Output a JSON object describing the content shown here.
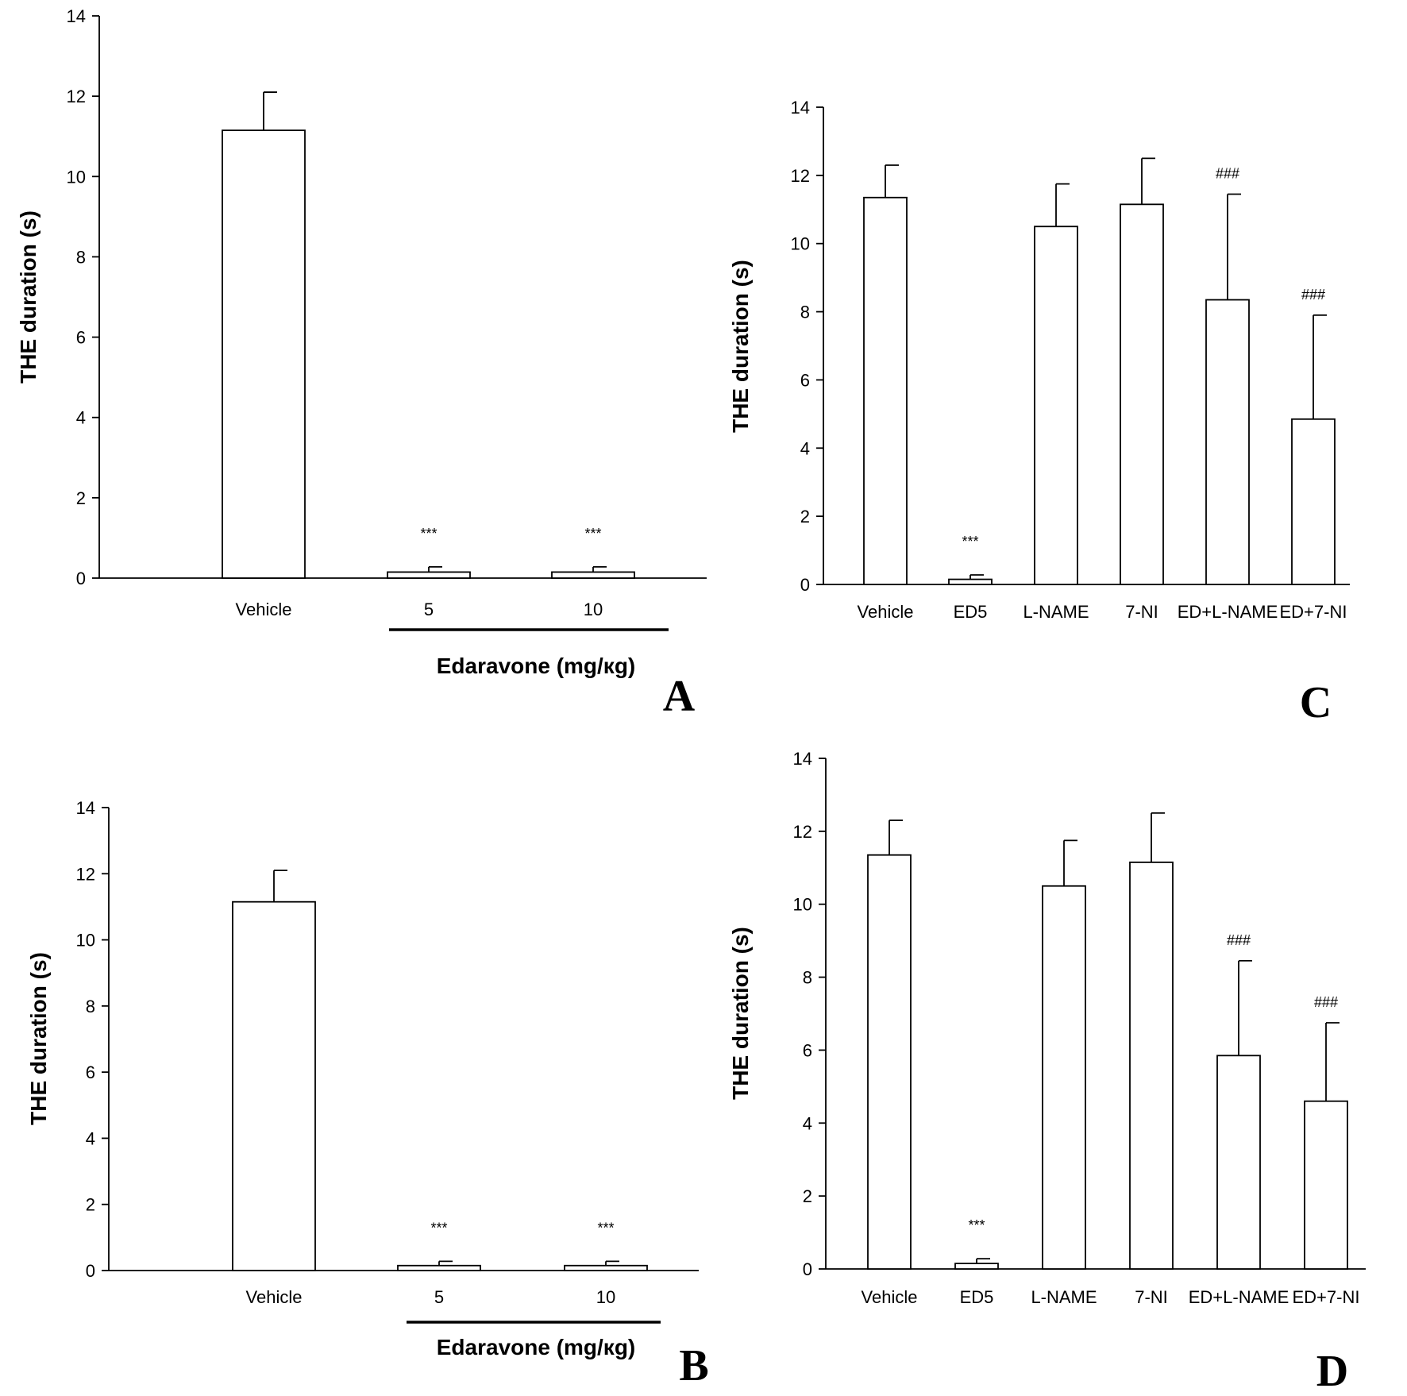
{
  "chart_data": [
    {
      "panel": "A",
      "type": "bar",
      "ylabel": "THE duration (s)",
      "group_label": "Edaravone (mg/кg)",
      "ylim": [
        0,
        14
      ],
      "yticks": [
        "0",
        "2",
        "4",
        "6",
        "8",
        "10",
        "12",
        "14"
      ],
      "categories": [
        "Vehicle",
        "5",
        "10"
      ],
      "values": [
        11.15,
        0.15,
        0.15
      ],
      "errors": [
        0.95,
        0.13,
        0.13
      ],
      "annotations": [
        "",
        "***",
        "***"
      ]
    },
    {
      "panel": "B",
      "type": "bar",
      "ylabel": "THE duration (s)",
      "group_label": "Edaravone (mg/кg)",
      "ylim": [
        0,
        14
      ],
      "yticks": [
        "0",
        "2",
        "4",
        "6",
        "8",
        "10",
        "12",
        "14"
      ],
      "categories": [
        "Vehicle",
        "5",
        "10"
      ],
      "values": [
        11.15,
        0.15,
        0.15
      ],
      "errors": [
        0.95,
        0.13,
        0.13
      ],
      "annotations": [
        "",
        "***",
        "***"
      ]
    },
    {
      "panel": "C",
      "type": "bar",
      "ylabel": "THE duration (s)",
      "group_label": "",
      "ylim": [
        0,
        14
      ],
      "yticks": [
        "0",
        "2",
        "4",
        "6",
        "8",
        "10",
        "12",
        "14"
      ],
      "categories": [
        "Vehicle",
        "ED5",
        "L-NAME",
        "7-NI",
        "ED+L-NAME",
        "ED+7-NI"
      ],
      "values": [
        11.35,
        0.15,
        10.5,
        11.15,
        8.35,
        4.85
      ],
      "errors": [
        0.95,
        0.13,
        1.25,
        1.35,
        3.1,
        3.05
      ],
      "annotations": [
        "",
        "***",
        "",
        "",
        "###",
        "###"
      ]
    },
    {
      "panel": "D",
      "type": "bar",
      "ylabel": "THE duration (s)",
      "group_label": "",
      "ylim": [
        0,
        14
      ],
      "yticks": [
        "0",
        "2",
        "4",
        "6",
        "8",
        "10",
        "12",
        "14"
      ],
      "categories": [
        "Vehicle",
        "ED5",
        "L-NAME",
        "7-NI",
        "ED+L-NAME",
        "ED+7-NI"
      ],
      "values": [
        11.35,
        0.15,
        10.5,
        11.15,
        5.85,
        4.6
      ],
      "errors": [
        0.95,
        0.13,
        1.25,
        1.35,
        2.6,
        2.15
      ],
      "annotations": [
        "",
        "***",
        "",
        "",
        "###",
        "###"
      ]
    }
  ]
}
